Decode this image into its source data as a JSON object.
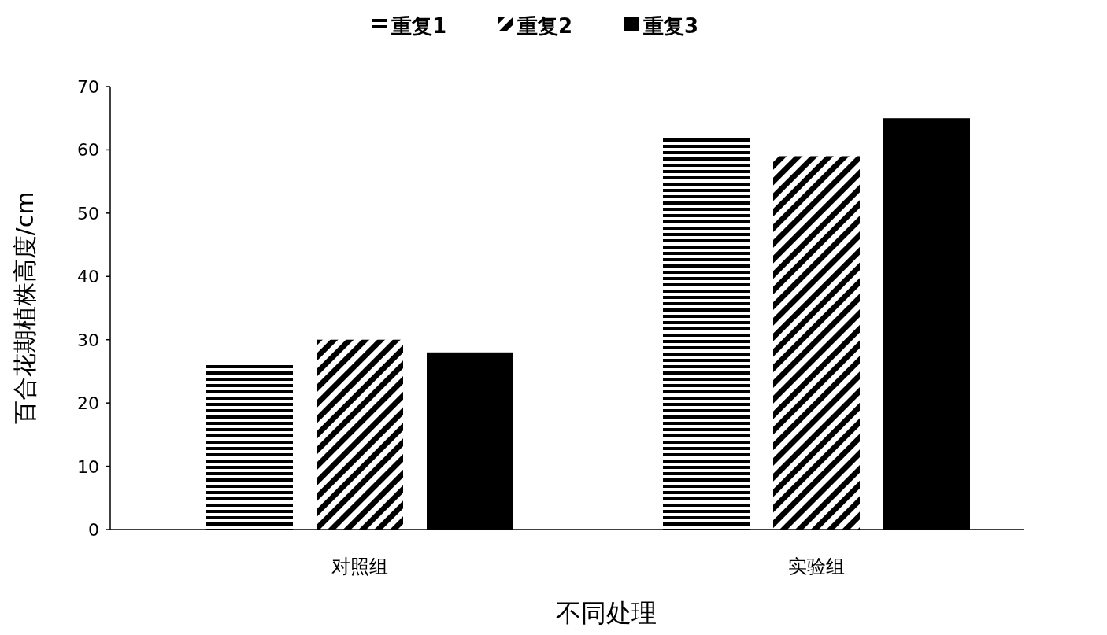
{
  "chart_data": {
    "type": "bar",
    "xlabel": "不同处理",
    "ylabel": "百合花期植株高度/cm",
    "categories": [
      "对照组",
      "实验组"
    ],
    "series": [
      {
        "name": "重复1",
        "color": "#000000",
        "values": [
          26,
          62
        ]
      },
      {
        "name": "重复2",
        "color": "#000000",
        "values": [
          30,
          59
        ]
      },
      {
        "name": "重复3",
        "color": "#000000",
        "values": [
          28,
          65
        ]
      }
    ],
    "ylim": [
      0,
      70
    ],
    "yticks": [
      0,
      10,
      20,
      30,
      40,
      50,
      60,
      70
    ],
    "legend": "top",
    "grid": false
  }
}
